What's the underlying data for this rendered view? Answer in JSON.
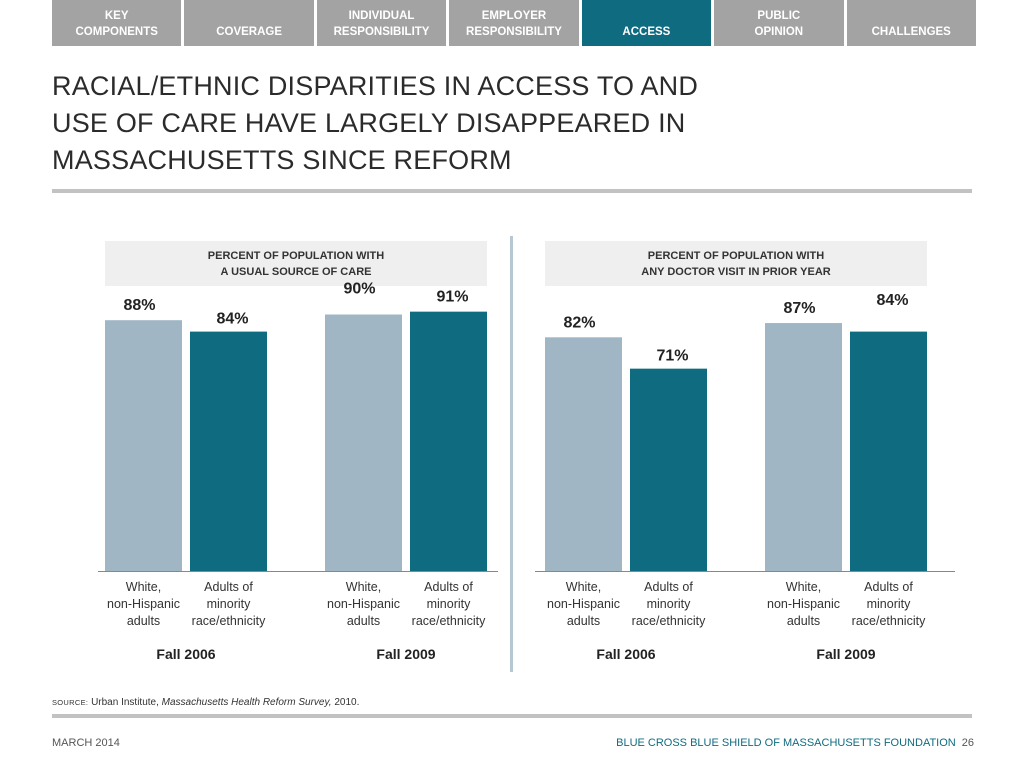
{
  "nav": {
    "tabs": [
      {
        "line1": "KEY",
        "line2": "COMPONENTS",
        "active": false
      },
      {
        "line1": "",
        "line2": "COVERAGE",
        "active": false
      },
      {
        "line1": "INDIVIDUAL",
        "line2": "RESPONSIBILITY",
        "active": false
      },
      {
        "line1": "EMPLOYER",
        "line2": "RESPONSIBILITY",
        "active": false
      },
      {
        "line1": "",
        "line2": "ACCESS",
        "active": true
      },
      {
        "line1": "PUBLIC",
        "line2": "OPINION",
        "active": false
      },
      {
        "line1": "",
        "line2": "CHALLENGES",
        "active": false
      }
    ]
  },
  "slide": {
    "title_lines": [
      "RACIAL/ETHNIC DISPARITIES IN ACCESS TO AND",
      "USE OF CARE HAVE LARGELY DISAPPEARED IN",
      "MASSACHUSETTS SINCE REFORM"
    ]
  },
  "colors": {
    "white_non_hispanic": "#a0b6c4",
    "minority": "#0f6b80",
    "active_tab": "#0f6b80",
    "inactive_tab": "#a3a3a3"
  },
  "chart_data": [
    {
      "type": "bar",
      "title_lines": [
        "PERCENT OF POPULATION WITH",
        "A USUAL SOURCE OF CARE"
      ],
      "groups": [
        "Fall 2006",
        "Fall 2009"
      ],
      "categories": [
        [
          "White,",
          "non-Hispanic",
          "adults"
        ],
        [
          "Adults of",
          "minority",
          "race/ethnicity"
        ]
      ],
      "series": [
        {
          "group": "Fall 2006",
          "values": [
            88,
            84
          ],
          "labels": [
            "88%",
            "84%"
          ]
        },
        {
          "group": "Fall 2009",
          "values": [
            90,
            91
          ],
          "labels": [
            "90%",
            "91%"
          ]
        }
      ],
      "unit": "%",
      "ylim": [
        0,
        100
      ]
    },
    {
      "type": "bar",
      "title_lines": [
        "PERCENT OF POPULATION WITH",
        "ANY DOCTOR VISIT IN PRIOR YEAR"
      ],
      "groups": [
        "Fall 2006",
        "Fall 2009"
      ],
      "categories": [
        [
          "White,",
          "non-Hispanic",
          "adults"
        ],
        [
          "Adults of",
          "minority",
          "race/ethnicity"
        ]
      ],
      "series": [
        {
          "group": "Fall 2006",
          "values": [
            82,
            71
          ],
          "labels": [
            "82%",
            "71%"
          ]
        },
        {
          "group": "Fall 2009",
          "values": [
            87,
            84
          ],
          "labels": [
            "87%",
            "84%"
          ]
        }
      ],
      "unit": "%",
      "ylim": [
        0,
        100
      ]
    }
  ],
  "source": {
    "label": "SOURCE:",
    "text_before": "Urban Institute, ",
    "italic": "Massachusetts Health Reform Survey,",
    "text_after": " 2010."
  },
  "footer": {
    "date": "MARCH 2014",
    "org": "BLUE CROSS BLUE SHIELD OF MASSACHUSETTS FOUNDATION",
    "page": "26"
  }
}
